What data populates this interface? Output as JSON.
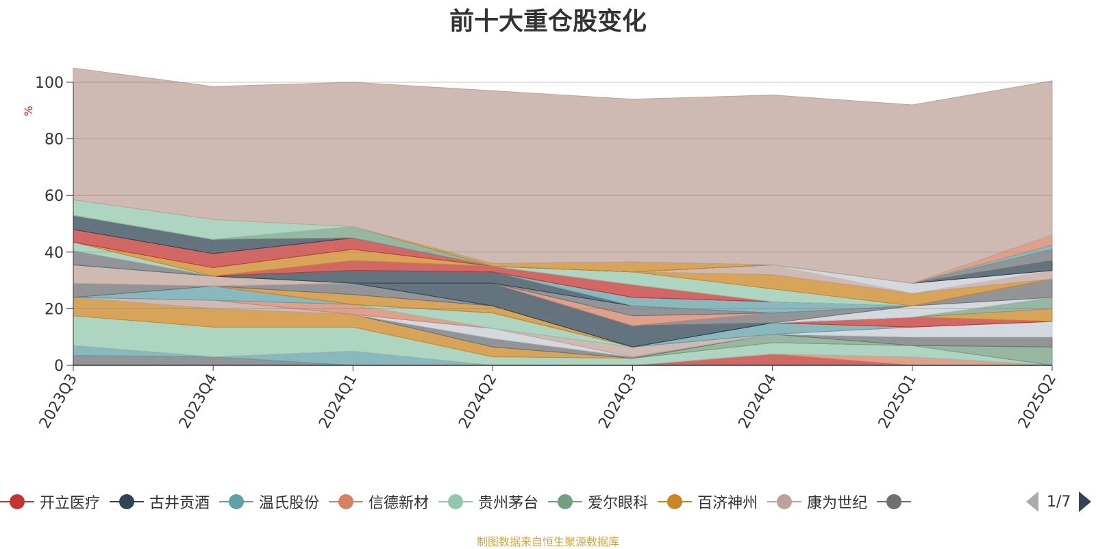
{
  "title": "前十大重仓股变化",
  "source_note": "制图数据来自恒生聚源数据库",
  "pager": {
    "text": "1/7"
  },
  "legend": [
    {
      "label": "开立医疗",
      "color": "#c23531"
    },
    {
      "label": "古井贡酒",
      "color": "#2f4554"
    },
    {
      "label": "温氏股份",
      "color": "#61a0a8"
    },
    {
      "label": "信德新材",
      "color": "#d48265"
    },
    {
      "label": "贵州茅台",
      "color": "#91c7ae"
    },
    {
      "label": "爱尔眼科",
      "color": "#749f83"
    },
    {
      "label": "百济神州",
      "color": "#ca8622"
    },
    {
      "label": "康为世纪",
      "color": "#bda29a"
    },
    {
      "label": "",
      "color": "#6e7074"
    }
  ],
  "chart_data": {
    "type": "area",
    "stacked": true,
    "title": "前十大重仓股变化",
    "ylabel": "%",
    "ylim": [
      0,
      100
    ],
    "yticks": [
      0,
      20,
      40,
      60,
      80,
      100
    ],
    "grid": true,
    "legend_position": "bottom",
    "categories": [
      "2023Q3",
      "2023Q4",
      "2024Q1",
      "2024Q2",
      "2024Q3",
      "2024Q4",
      "2025Q1",
      "2025Q2"
    ],
    "series": [
      {
        "color": "#6e7074",
        "values": [
          3.5,
          3.0,
          0.0,
          0.0,
          0.0,
          0.0,
          0.0,
          0.0
        ]
      },
      {
        "color": "#61a0a8",
        "values": [
          3.5,
          0.0,
          5.0,
          0.0,
          0.0,
          0.0,
          0.0,
          0.0
        ]
      },
      {
        "color": "#c23531",
        "values": [
          0.0,
          0.0,
          0.0,
          0.0,
          0.0,
          4.0,
          0.0,
          0.0
        ]
      },
      {
        "color": "#d48265",
        "values": [
          0.0,
          0.0,
          0.0,
          0.0,
          0.0,
          0.0,
          3.0,
          0.0
        ]
      },
      {
        "color": "#91c7ae",
        "values": [
          10.5,
          10.5,
          8.5,
          3.0,
          2.5,
          4.0,
          4.0,
          0.0
        ]
      },
      {
        "color": "#ca8622",
        "values": [
          6.5,
          6.5,
          4.5,
          3.5,
          0.0,
          0.0,
          0.0,
          0.0
        ]
      },
      {
        "color": "#749f83",
        "values": [
          0.0,
          0.0,
          0.0,
          0.0,
          0.0,
          3.0,
          0.0,
          6.5
        ]
      },
      {
        "color": "#6e7074",
        "values": [
          0.0,
          0.0,
          0.0,
          3.0,
          0.5,
          0.0,
          3.0,
          3.5
        ]
      },
      {
        "color": "#c4ccd3",
        "values": [
          0.0,
          0.0,
          0.0,
          3.5,
          0.0,
          0.0,
          3.5,
          5.5
        ]
      },
      {
        "color": "#bda29a",
        "values": [
          0.0,
          3.0,
          0.0,
          0.0,
          3.5,
          0.0,
          0.0,
          0.0
        ]
      },
      {
        "color": "#d48265",
        "values": [
          0.0,
          0.0,
          3.5,
          0.0,
          0.0,
          0.0,
          0.0,
          0.0
        ]
      },
      {
        "color": "#61a0a8",
        "values": [
          0.0,
          5.0,
          0.0,
          0.0,
          0.0,
          4.0,
          0.0,
          0.0
        ]
      },
      {
        "color": "#91c7ae",
        "values": [
          0.0,
          0.0,
          0.0,
          5.5,
          0.0,
          0.0,
          0.0,
          0.0
        ]
      },
      {
        "color": "#c23531",
        "values": [
          0.0,
          0.0,
          0.0,
          0.0,
          0.0,
          0.0,
          3.5,
          0.0
        ]
      },
      {
        "color": "#ca8622",
        "values": [
          0.0,
          0.0,
          3.5,
          2.5,
          0.0,
          0.0,
          0.0,
          4.5
        ]
      },
      {
        "color": "#749f83",
        "values": [
          0.0,
          0.0,
          0.0,
          0.0,
          0.0,
          0.0,
          0.0,
          4.0
        ]
      },
      {
        "color": "#6e7074",
        "values": [
          0.0,
          0.0,
          4.0,
          0.0,
          0.0,
          0.0,
          0.0,
          0.0
        ]
      },
      {
        "color": "#2f4554",
        "values": [
          0.0,
          0.0,
          0.0,
          8.0,
          7.5,
          0.0,
          0.0,
          0.0
        ]
      },
      {
        "color": "#c4ccd3",
        "values": [
          0.0,
          0.0,
          0.0,
          0.0,
          0.0,
          0.0,
          4.0,
          0.0
        ]
      },
      {
        "color": "#6e7074",
        "values": [
          5.0,
          0.0,
          0.0,
          0.0,
          0.0,
          3.5,
          0.0,
          6.5
        ]
      },
      {
        "color": "#d48265",
        "values": [
          0.0,
          0.0,
          0.0,
          0.0,
          3.5,
          0.0,
          0.0,
          0.0
        ]
      },
      {
        "color": "#bda29a",
        "values": [
          6.5,
          3.5,
          0.0,
          0.0,
          0.0,
          0.0,
          0.0,
          0.0
        ]
      },
      {
        "color": "#6e7074",
        "values": [
          0.0,
          0.0,
          0.0,
          0.0,
          3.5,
          0.0,
          0.0,
          0.0
        ]
      },
      {
        "color": "#2f4554",
        "values": [
          0.0,
          0.0,
          4.5,
          4.0,
          0.0,
          0.0,
          0.0,
          0.0
        ]
      },
      {
        "color": "#61a0a8",
        "values": [
          0.0,
          0.0,
          0.0,
          0.0,
          3.0,
          4.0,
          0.0,
          0.0
        ]
      },
      {
        "color": "#6e7074",
        "values": [
          5.0,
          0.0,
          0.0,
          0.0,
          0.0,
          0.0,
          0.0,
          0.0
        ]
      },
      {
        "color": "#c23531",
        "values": [
          0.0,
          0.0,
          3.5,
          2.0,
          4.5,
          0.0,
          0.0,
          0.0
        ]
      },
      {
        "color": "#91c7ae",
        "values": [
          3.0,
          0.0,
          0.0,
          0.0,
          4.5,
          4.5,
          0.0,
          0.0
        ]
      },
      {
        "color": "#ca8622",
        "values": [
          0.0,
          3.0,
          4.0,
          0.0,
          0.0,
          5.0,
          4.5,
          0.0
        ]
      },
      {
        "color": "#bda29a",
        "values": [
          0.0,
          0.0,
          0.0,
          0.0,
          0.0,
          3.5,
          0.0,
          3.0
        ]
      },
      {
        "color": "#c4ccd3",
        "values": [
          0.0,
          0.0,
          0.0,
          0.0,
          0.0,
          0.0,
          3.5,
          0.0
        ]
      },
      {
        "color": "#c23531",
        "values": [
          4.5,
          5.0,
          4.0,
          0.0,
          0.0,
          0.0,
          0.0,
          0.0
        ]
      },
      {
        "color": "#2f4554",
        "values": [
          5.0,
          5.0,
          0.0,
          0.0,
          0.0,
          0.0,
          0.0,
          3.5
        ]
      },
      {
        "color": "#749f83",
        "values": [
          0.0,
          0.0,
          4.0,
          0.0,
          0.0,
          0.0,
          0.0,
          0.0
        ]
      },
      {
        "color": "#ca8622",
        "values": [
          0.0,
          0.0,
          0.0,
          1.0,
          3.5,
          0.0,
          0.0,
          0.0
        ]
      },
      {
        "color": "#6e7074",
        "values": [
          0.0,
          0.0,
          0.0,
          0.0,
          0.0,
          0.0,
          0.0,
          4.0
        ]
      },
      {
        "color": "#61a0a8",
        "values": [
          0.0,
          0.0,
          0.0,
          0.0,
          0.0,
          0.0,
          0.0,
          1.5
        ]
      },
      {
        "color": "#d48265",
        "values": [
          0.0,
          0.0,
          0.0,
          0.0,
          0.0,
          0.0,
          0.0,
          3.5
        ]
      },
      {
        "color": "#91c7ae",
        "values": [
          5.5,
          7.0,
          0.0,
          0.0,
          0.0,
          0.0,
          0.0,
          0.0
        ]
      },
      {
        "color": "#bda29a",
        "values": [
          46.5,
          47.0,
          51.0,
          61.0,
          57.5,
          60.0,
          63.0,
          54.5
        ]
      }
    ]
  }
}
